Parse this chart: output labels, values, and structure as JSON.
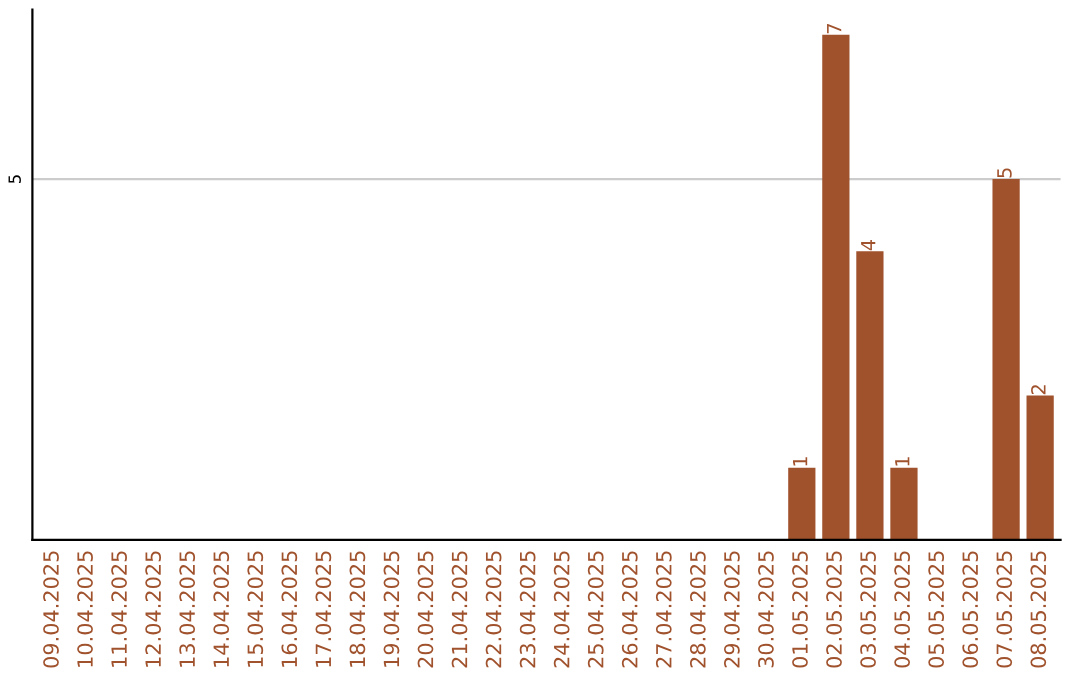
{
  "chart_data": {
    "type": "bar",
    "categories": [
      "09.04.2025",
      "10.04.2025",
      "11.04.2025",
      "12.04.2025",
      "13.04.2025",
      "14.04.2025",
      "15.04.2025",
      "16.04.2025",
      "17.04.2025",
      "18.04.2025",
      "19.04.2025",
      "20.04.2025",
      "21.04.2025",
      "22.04.2025",
      "23.04.2025",
      "24.04.2025",
      "25.04.2025",
      "26.04.2025",
      "27.04.2025",
      "28.04.2025",
      "29.04.2025",
      "30.04.2025",
      "01.05.2025",
      "02.05.2025",
      "03.05.2025",
      "04.05.2025",
      "05.05.2025",
      "06.05.2025",
      "07.05.2025",
      "08.05.2025"
    ],
    "values": [
      null,
      null,
      null,
      null,
      null,
      null,
      null,
      null,
      null,
      null,
      null,
      null,
      null,
      null,
      null,
      null,
      null,
      null,
      null,
      null,
      null,
      null,
      1,
      7,
      4,
      1,
      null,
      null,
      5,
      2
    ],
    "data_labels": true,
    "color": "#a0522d",
    "ref_lines": [
      {
        "axis": "y",
        "value": 5,
        "label": "5",
        "color": "#cccccc"
      }
    ]
  }
}
